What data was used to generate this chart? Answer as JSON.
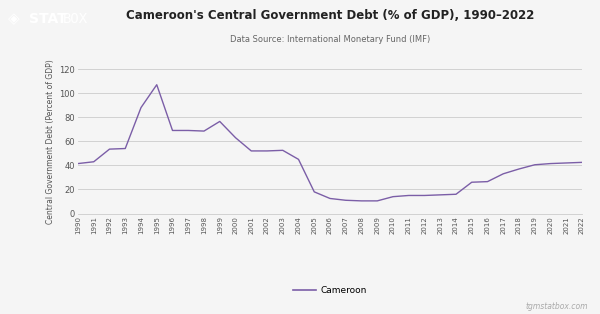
{
  "title": "Cameroon's Central Government Debt (% of GDP), 1990–2022",
  "subtitle": "Data Source: International Monetary Fund (IMF)",
  "ylabel": "Central Government Debt (Percent of GDP)",
  "line_color": "#7b5ea7",
  "background_color": "#f5f5f5",
  "plot_bg_color": "#f5f5f5",
  "ylim": [
    0,
    120
  ],
  "yticks": [
    0,
    20,
    40,
    60,
    80,
    100,
    120
  ],
  "legend_label": "Cameroon",
  "watermark": "tgmstatbox.com",
  "years": [
    1990,
    1991,
    1992,
    1993,
    1994,
    1995,
    1996,
    1997,
    1998,
    1999,
    2000,
    2001,
    2002,
    2003,
    2004,
    2005,
    2006,
    2007,
    2008,
    2009,
    2010,
    2011,
    2012,
    2013,
    2014,
    2015,
    2016,
    2017,
    2018,
    2019,
    2020,
    2021,
    2022
  ],
  "values": [
    41.5,
    43.0,
    53.5,
    54.0,
    88.0,
    107.0,
    69.0,
    69.0,
    68.5,
    76.5,
    63.0,
    52.0,
    52.0,
    52.5,
    45.0,
    18.0,
    12.5,
    11.0,
    10.5,
    10.5,
    14.0,
    15.0,
    15.0,
    15.5,
    16.0,
    26.0,
    26.5,
    33.0,
    37.0,
    40.5,
    41.5,
    42.0,
    42.5
  ],
  "grid_color": "#cccccc",
  "tick_color": "#555555",
  "title_color": "#222222",
  "subtitle_color": "#666666",
  "logo_bg_color": "#111111",
  "logo_fg_color": "#ffffff",
  "logo_diamond": "◈",
  "logo_stat": "STAT",
  "logo_box": "BOX"
}
